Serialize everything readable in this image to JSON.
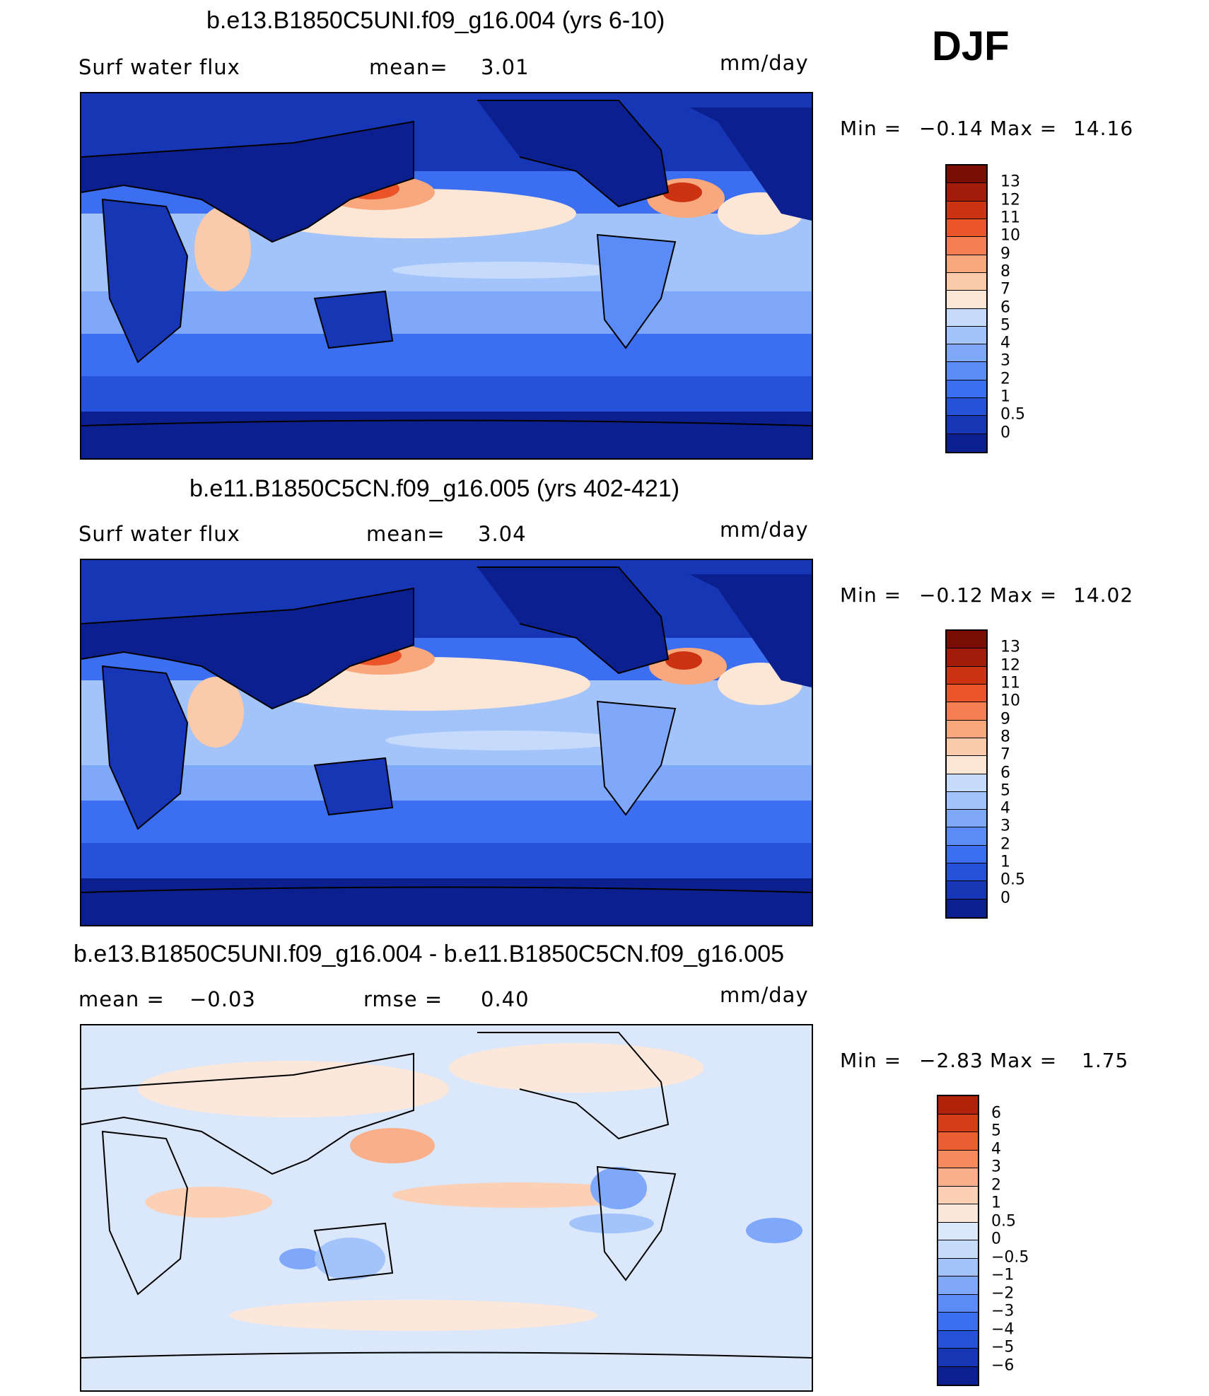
{
  "season": "DJF",
  "colors": {
    "abs_scale": [
      "#0c1f8f",
      "#1736b5",
      "#2652d9",
      "#3b6ef0",
      "#5a8bf7",
      "#7fa8fa",
      "#a3c3fb",
      "#c6dafb",
      "#fce6d6",
      "#fbcaab",
      "#f9a87e",
      "#f57f52",
      "#ea5428",
      "#cc3312",
      "#a31c0a",
      "#7a0d04"
    ],
    "diff_scale": [
      "#0c1f8f",
      "#1736b5",
      "#2652d9",
      "#3b6ef0",
      "#5a8bf7",
      "#7fa8fa",
      "#a3c3fb",
      "#c6dafb",
      "#dbe7fb",
      "#fce8da",
      "#fbd0b4",
      "#f9b08a",
      "#f58a5f",
      "#ea5e33",
      "#d43d18",
      "#b0220a",
      "#7a0d04"
    ],
    "land_outline": "#000000"
  },
  "panels": [
    {
      "title": "b.e13.B1850C5UNI.f09_g16.004 (yrs 6-10)",
      "left_label": "Surf  water  flux",
      "stat_label": "mean=",
      "stat_value": "3.01",
      "stat2_label": "",
      "stat2_value": "",
      "units": "mm/day",
      "min_label": "Min  =",
      "min_value": "−0.14",
      "max_label": "Max  =",
      "max_value": "14.16"
    },
    {
      "title": "b.e11.B1850C5CN.f09_g16.005 (yrs 402-421)",
      "left_label": "Surf  water  flux",
      "stat_label": "mean=",
      "stat_value": "3.04",
      "stat2_label": "",
      "stat2_value": "",
      "units": "mm/day",
      "min_label": "Min  =",
      "min_value": "−0.12",
      "max_label": "Max  =",
      "max_value": "14.02"
    },
    {
      "title": "b.e13.B1850C5UNI.f09_g16.004 - b.e11.B1850C5CN.f09_g16.005",
      "left_label": "mean  =",
      "stat_label": "",
      "stat_value": "−0.03",
      "stat2_label": "rmse  =",
      "stat2_value": "0.40",
      "units": "mm/day",
      "min_label": "Min  =",
      "min_value": "−2.83",
      "max_label": "Max  =",
      "max_value": "1.75"
    }
  ],
  "colorbar_abs_labels": [
    "13",
    "12",
    "11",
    "10",
    "9",
    "8",
    "7",
    "6",
    "5",
    "4",
    "3",
    "2",
    "1",
    "0.5",
    "0"
  ],
  "colorbar_diff_labels": [
    "6",
    "5",
    "4",
    "3",
    "2",
    "1",
    "0.5",
    "0",
    "−0.5",
    "−1",
    "−2",
    "−3",
    "−4",
    "−5",
    "−6"
  ]
}
